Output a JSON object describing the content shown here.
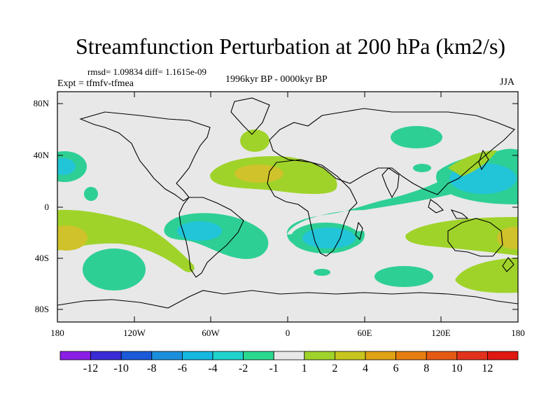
{
  "title": "Streamfunction Perturbation at 200 hPa (km2/s)",
  "stats": "rmsd= 1.09834  diff= 1.1615e-09",
  "experiment": "Expt = tfmfv-tfmea",
  "period": "1996kyr BP - 0000kyr BP",
  "season": "JJA",
  "map": {
    "lat_labels": [
      "80N",
      "40N",
      "0",
      "40S",
      "80S"
    ],
    "lon_labels": [
      "180",
      "120W",
      "60W",
      "0",
      "60E",
      "120E",
      "180"
    ],
    "colors": {
      "neg4_to_neg2": "#22c4d8",
      "neg2_to_neg1": "#2ecf95",
      "pos1_to_2": "#9fd32a",
      "pos2_to_4": "#cfc22a",
      "background": "#e8e8e8"
    }
  },
  "colorbar": {
    "labels": [
      "-12",
      "-10",
      "-8",
      "-6",
      "-4",
      "-2",
      "-1",
      "1",
      "2",
      "4",
      "6",
      "8",
      "10",
      "12"
    ],
    "colors": [
      "#8b1ee6",
      "#3b2bd6",
      "#1b59d8",
      "#1c8fdc",
      "#15b8e1",
      "#22d2cc",
      "#2bd98f",
      "#e8e8e8",
      "#9fd32a",
      "#c7c51e",
      "#e0a316",
      "#e67e12",
      "#e45a14",
      "#e2321c",
      "#e01812"
    ]
  }
}
